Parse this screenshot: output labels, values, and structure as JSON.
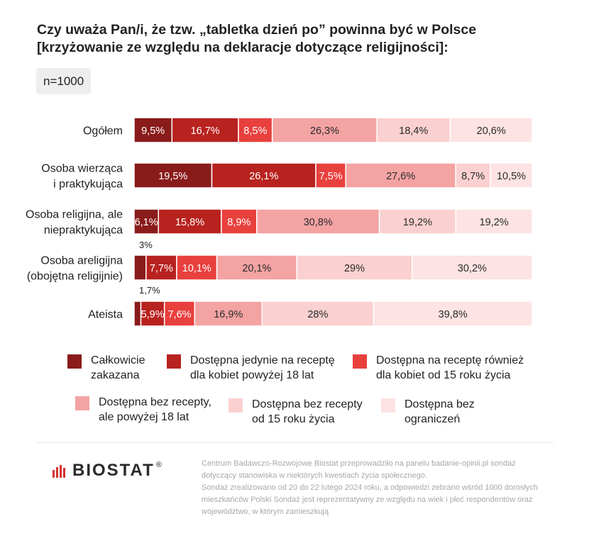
{
  "title": "Czy uważa Pan/i, że tzw. „tabletka dzień po” powinna być w Polsce [krzyżowanie ze względu na deklaracje dotyczące religijności]:",
  "sample": "n=1000",
  "chart_data": {
    "type": "bar",
    "orientation": "horizontal",
    "stacked": true,
    "unit": "%",
    "categories": [
      [
        "Ogółem"
      ],
      [
        "Osoba wierząca",
        "i praktykująca"
      ],
      [
        "Osoba religijna, ale",
        "niepraktykująca"
      ],
      [
        "Osoba areligijna",
        "(obojętna religijnie)"
      ],
      [
        "Ateista"
      ]
    ],
    "series": [
      {
        "name": "Całkowicie zakazana",
        "color": "#8a1b1b",
        "values": [
          9.5,
          19.5,
          6.1,
          3,
          1.7
        ]
      },
      {
        "name": "Dostępna jedynie na receptę dla kobiet powyżej 18 lat",
        "color": "#b8221f",
        "values": [
          16.7,
          26.1,
          15.8,
          7.7,
          5.9
        ]
      },
      {
        "name": "Dostępna na receptę również dla kobiet od 15 roku życia",
        "color": "#e8403d",
        "values": [
          8.5,
          7.5,
          8.9,
          10.1,
          7.6
        ]
      },
      {
        "name": "Dostępna bez recepty, ale powyżej 18 lat",
        "color": "#f4a3a3",
        "values": [
          26.3,
          27.6,
          30.8,
          20.1,
          16.9
        ]
      },
      {
        "name": "Dostępna bez recepty od 15 roku życia",
        "color": "#fbd0d0",
        "values": [
          18.4,
          8.7,
          19.2,
          29,
          28
        ]
      },
      {
        "name": "Dostępna bez ograniczeń",
        "color": "#fde3e3",
        "values": [
          20.6,
          10.5,
          19.2,
          30.2,
          39.8
        ]
      }
    ],
    "value_labels": [
      [
        "9,5%",
        "16,7%",
        "8,5%",
        "26,3%",
        "18,4%",
        "20,6%"
      ],
      [
        "19,5%",
        "26,1%",
        "7,5%",
        "27,6%",
        "8,7%",
        "10,5%"
      ],
      [
        "6,1%",
        "15,8%",
        "8,9%",
        "30,8%",
        "19,2%",
        "19,2%"
      ],
      [
        "3%",
        "7,7%",
        "10,1%",
        "20,1%",
        "29%",
        "30,2%"
      ],
      [
        "1,7%",
        "5,9%",
        "7,6%",
        "16,9%",
        "28%",
        "39,8%"
      ]
    ],
    "outside_labels": [
      {
        "row": 3,
        "series": 0,
        "position": "above"
      },
      {
        "row": 3,
        "series": 0,
        "position": "below",
        "text_from_row": 4
      }
    ],
    "light_label_series": [
      0,
      1,
      2
    ],
    "legend": [
      {
        "series": 0,
        "lines": [
          "Całkowicie",
          "zakazana"
        ]
      },
      {
        "series": 1,
        "lines": [
          "Dostępna jedynie na receptę",
          "dla kobiet powyżej 18 lat"
        ]
      },
      {
        "series": 2,
        "lines": [
          "Dostępna na receptę również",
          "dla kobiet od 15 roku życia"
        ]
      },
      {
        "series": 3,
        "lines": [
          "Dostępna bez recepty,",
          "ale powyżej 18 lat"
        ]
      },
      {
        "series": 4,
        "lines": [
          "Dostępna bez recepty",
          "od 15 roku życia"
        ]
      },
      {
        "series": 5,
        "lines": [
          "Dostępna bez",
          "ograniczeń"
        ]
      }
    ]
  },
  "logo": {
    "brand": "BIOSTAT",
    "mark": "®",
    "bar_color": "#d4332f"
  },
  "footnote": {
    "p1": "Centrum Badawczo-Rozwojowe Biostat przeprowadziło na panelu badanie-opinii.pl sondaż dotyczący stanowiska w niektórych kwestiach życia społecznego.",
    "p2": "Sondaż zrealizowano od 20 do 22 lutego 2024 roku, a odpowiedzi zebrano wśród 1000 dorosłych mieszkańców Polski Sondaż jest reprezentatywny ze względu na wiek i płeć respondentów oraz województwo, w którym zamieszkują"
  }
}
